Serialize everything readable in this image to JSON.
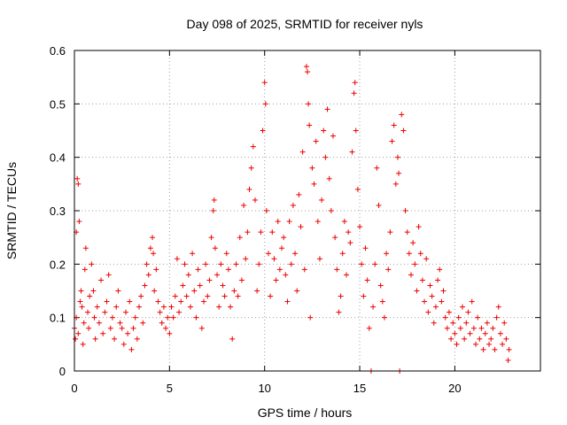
{
  "chart_data": {
    "type": "scatter",
    "title": "Day 098 of 2025, SRMTID for receiver nyls",
    "xlabel": "GPS time / hours",
    "ylabel": "SRMTID / TECUs",
    "xlim": [
      0,
      24.5
    ],
    "ylim": [
      0,
      0.6
    ],
    "xticks": [
      0,
      5,
      10,
      15,
      20
    ],
    "xtick_labels": [
      "0",
      "5",
      "10",
      "15",
      "20"
    ],
    "yticks": [
      0,
      0.1,
      0.2,
      0.3,
      0.4,
      0.5,
      0.6
    ],
    "ytick_labels": [
      "0",
      "0.1",
      "0.2",
      "0.3",
      "0.4",
      "0.5",
      "0.6"
    ],
    "grid": true,
    "marker": "+",
    "series": [
      {
        "name": "SRMTID",
        "color": "#ee0000",
        "points": [
          [
            0.0,
            0.08
          ],
          [
            0.05,
            0.06
          ],
          [
            0.1,
            0.1
          ],
          [
            0.1,
            0.26
          ],
          [
            0.15,
            0.36
          ],
          [
            0.2,
            0.35
          ],
          [
            0.2,
            0.07
          ],
          [
            0.25,
            0.28
          ],
          [
            0.3,
            0.13
          ],
          [
            0.35,
            0.15
          ],
          [
            0.4,
            0.12
          ],
          [
            0.45,
            0.05
          ],
          [
            0.5,
            0.09
          ],
          [
            0.55,
            0.19
          ],
          [
            0.6,
            0.23
          ],
          [
            0.7,
            0.11
          ],
          [
            0.75,
            0.08
          ],
          [
            0.8,
            0.14
          ],
          [
            0.9,
            0.2
          ],
          [
            1.0,
            0.15
          ],
          [
            1.05,
            0.1
          ],
          [
            1.1,
            0.06
          ],
          [
            1.2,
            0.12
          ],
          [
            1.3,
            0.09
          ],
          [
            1.4,
            0.17
          ],
          [
            1.5,
            0.07
          ],
          [
            1.6,
            0.11
          ],
          [
            1.7,
            0.13
          ],
          [
            1.8,
            0.18
          ],
          [
            1.9,
            0.08
          ],
          [
            2.0,
            0.1
          ],
          [
            2.1,
            0.06
          ],
          [
            2.2,
            0.12
          ],
          [
            2.3,
            0.15
          ],
          [
            2.4,
            0.09
          ],
          [
            2.5,
            0.08
          ],
          [
            2.6,
            0.05
          ],
          [
            2.7,
            0.11
          ],
          [
            2.8,
            0.07
          ],
          [
            2.9,
            0.13
          ],
          [
            3.0,
            0.04
          ],
          [
            3.1,
            0.08
          ],
          [
            3.2,
            0.1
          ],
          [
            3.3,
            0.06
          ],
          [
            3.4,
            0.12
          ],
          [
            3.5,
            0.14
          ],
          [
            3.6,
            0.09
          ],
          [
            3.7,
            0.16
          ],
          [
            3.8,
            0.2
          ],
          [
            3.9,
            0.18
          ],
          [
            4.0,
            0.23
          ],
          [
            4.1,
            0.25
          ],
          [
            4.15,
            0.22
          ],
          [
            4.2,
            0.15
          ],
          [
            4.3,
            0.19
          ],
          [
            4.4,
            0.13
          ],
          [
            4.5,
            0.11
          ],
          [
            4.6,
            0.09
          ],
          [
            4.7,
            0.12
          ],
          [
            4.8,
            0.08
          ],
          [
            4.9,
            0.1
          ],
          [
            5.0,
            0.07
          ],
          [
            5.1,
            0.12
          ],
          [
            5.2,
            0.1
          ],
          [
            5.3,
            0.14
          ],
          [
            5.4,
            0.21
          ],
          [
            5.5,
            0.11
          ],
          [
            5.6,
            0.13
          ],
          [
            5.7,
            0.16
          ],
          [
            5.8,
            0.2
          ],
          [
            5.9,
            0.14
          ],
          [
            6.0,
            0.18
          ],
          [
            6.1,
            0.12
          ],
          [
            6.2,
            0.22
          ],
          [
            6.3,
            0.15
          ],
          [
            6.4,
            0.1
          ],
          [
            6.5,
            0.19
          ],
          [
            6.6,
            0.16
          ],
          [
            6.7,
            0.08
          ],
          [
            6.8,
            0.13
          ],
          [
            6.9,
            0.2
          ],
          [
            7.0,
            0.14
          ],
          [
            7.1,
            0.17
          ],
          [
            7.2,
            0.25
          ],
          [
            7.3,
            0.3
          ],
          [
            7.35,
            0.32
          ],
          [
            7.4,
            0.23
          ],
          [
            7.5,
            0.18
          ],
          [
            7.6,
            0.12
          ],
          [
            7.7,
            0.2
          ],
          [
            7.8,
            0.16
          ],
          [
            7.9,
            0.14
          ],
          [
            8.0,
            0.22
          ],
          [
            8.1,
            0.19
          ],
          [
            8.2,
            0.12
          ],
          [
            8.3,
            0.06
          ],
          [
            8.4,
            0.15
          ],
          [
            8.5,
            0.2
          ],
          [
            8.6,
            0.14
          ],
          [
            8.7,
            0.25
          ],
          [
            8.8,
            0.17
          ],
          [
            8.9,
            0.31
          ],
          [
            9.0,
            0.21
          ],
          [
            9.1,
            0.26
          ],
          [
            9.2,
            0.34
          ],
          [
            9.3,
            0.38
          ],
          [
            9.4,
            0.42
          ],
          [
            9.5,
            0.32
          ],
          [
            9.6,
            0.15
          ],
          [
            9.7,
            0.2
          ],
          [
            9.8,
            0.26
          ],
          [
            9.9,
            0.45
          ],
          [
            10.0,
            0.54
          ],
          [
            10.05,
            0.5
          ],
          [
            10.1,
            0.3
          ],
          [
            10.2,
            0.22
          ],
          [
            10.3,
            0.14
          ],
          [
            10.4,
            0.26
          ],
          [
            10.5,
            0.21
          ],
          [
            10.6,
            0.17
          ],
          [
            10.7,
            0.28
          ],
          [
            10.8,
            0.19
          ],
          [
            10.9,
            0.23
          ],
          [
            11.0,
            0.25
          ],
          [
            11.1,
            0.18
          ],
          [
            11.2,
            0.13
          ],
          [
            11.3,
            0.28
          ],
          [
            11.4,
            0.2
          ],
          [
            11.5,
            0.31
          ],
          [
            11.6,
            0.22
          ],
          [
            11.7,
            0.15
          ],
          [
            11.8,
            0.33
          ],
          [
            11.9,
            0.27
          ],
          [
            12.0,
            0.41
          ],
          [
            12.1,
            0.19
          ],
          [
            12.2,
            0.57
          ],
          [
            12.25,
            0.56
          ],
          [
            12.3,
            0.5
          ],
          [
            12.35,
            0.46
          ],
          [
            12.4,
            0.1
          ],
          [
            12.5,
            0.38
          ],
          [
            12.6,
            0.35
          ],
          [
            12.7,
            0.43
          ],
          [
            12.8,
            0.28
          ],
          [
            12.9,
            0.21
          ],
          [
            13.0,
            0.32
          ],
          [
            13.1,
            0.45
          ],
          [
            13.2,
            0.4
          ],
          [
            13.3,
            0.49
          ],
          [
            13.4,
            0.36
          ],
          [
            13.5,
            0.3
          ],
          [
            13.6,
            0.44
          ],
          [
            13.7,
            0.25
          ],
          [
            13.8,
            0.19
          ],
          [
            13.9,
            0.11
          ],
          [
            14.0,
            0.14
          ],
          [
            14.1,
            0.22
          ],
          [
            14.2,
            0.28
          ],
          [
            14.3,
            0.18
          ],
          [
            14.4,
            0.26
          ],
          [
            14.5,
            0.24
          ],
          [
            14.6,
            0.41
          ],
          [
            14.7,
            0.52
          ],
          [
            14.75,
            0.54
          ],
          [
            14.8,
            0.45
          ],
          [
            14.9,
            0.34
          ],
          [
            15.0,
            0.27
          ],
          [
            15.1,
            0.2
          ],
          [
            15.2,
            0.14
          ],
          [
            15.3,
            0.23
          ],
          [
            15.4,
            0.17
          ],
          [
            15.5,
            0.08
          ],
          [
            15.6,
            0.0
          ],
          [
            15.7,
            0.12
          ],
          [
            15.8,
            0.2
          ],
          [
            15.9,
            0.38
          ],
          [
            16.0,
            0.31
          ],
          [
            16.1,
            0.16
          ],
          [
            16.2,
            0.13
          ],
          [
            16.3,
            0.1
          ],
          [
            16.4,
            0.22
          ],
          [
            16.5,
            0.19
          ],
          [
            16.6,
            0.26
          ],
          [
            16.7,
            0.43
          ],
          [
            16.8,
            0.46
          ],
          [
            16.9,
            0.35
          ],
          [
            17.0,
            0.4
          ],
          [
            17.05,
            0.37
          ],
          [
            17.1,
            0.0
          ],
          [
            17.2,
            0.48
          ],
          [
            17.3,
            0.45
          ],
          [
            17.4,
            0.3
          ],
          [
            17.5,
            0.26
          ],
          [
            17.6,
            0.22
          ],
          [
            17.7,
            0.18
          ],
          [
            17.8,
            0.24
          ],
          [
            17.9,
            0.2
          ],
          [
            18.0,
            0.15
          ],
          [
            18.1,
            0.27
          ],
          [
            18.2,
            0.22
          ],
          [
            18.3,
            0.17
          ],
          [
            18.4,
            0.13
          ],
          [
            18.5,
            0.21
          ],
          [
            18.6,
            0.11
          ],
          [
            18.7,
            0.16
          ],
          [
            18.8,
            0.14
          ],
          [
            18.9,
            0.09
          ],
          [
            19.0,
            0.12
          ],
          [
            19.1,
            0.17
          ],
          [
            19.2,
            0.19
          ],
          [
            19.3,
            0.13
          ],
          [
            19.4,
            0.15
          ],
          [
            19.5,
            0.1
          ],
          [
            19.6,
            0.08
          ],
          [
            19.7,
            0.11
          ],
          [
            19.8,
            0.06
          ],
          [
            19.9,
            0.09
          ],
          [
            20.0,
            0.07
          ],
          [
            20.1,
            0.05
          ],
          [
            20.2,
            0.1
          ],
          [
            20.3,
            0.08
          ],
          [
            20.4,
            0.12
          ],
          [
            20.5,
            0.06
          ],
          [
            20.6,
            0.09
          ],
          [
            20.7,
            0.11
          ],
          [
            20.8,
            0.07
          ],
          [
            20.9,
            0.13
          ],
          [
            21.0,
            0.08
          ],
          [
            21.1,
            0.05
          ],
          [
            21.2,
            0.1
          ],
          [
            21.3,
            0.06
          ],
          [
            21.4,
            0.08
          ],
          [
            21.5,
            0.04
          ],
          [
            21.6,
            0.07
          ],
          [
            21.7,
            0.09
          ],
          [
            21.8,
            0.05
          ],
          [
            21.9,
            0.06
          ],
          [
            22.0,
            0.08
          ],
          [
            22.1,
            0.04
          ],
          [
            22.2,
            0.1
          ],
          [
            22.3,
            0.12
          ],
          [
            22.4,
            0.07
          ],
          [
            22.5,
            0.05
          ],
          [
            22.6,
            0.09
          ],
          [
            22.7,
            0.06
          ],
          [
            22.8,
            0.02
          ],
          [
            22.85,
            0.04
          ]
        ]
      }
    ]
  }
}
